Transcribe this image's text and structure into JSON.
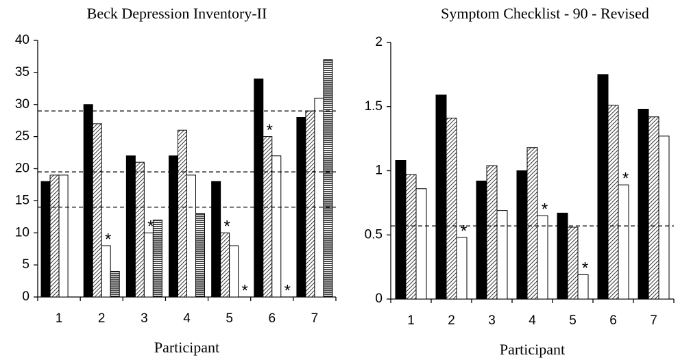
{
  "chart_data": [
    {
      "type": "bar",
      "title": "Beck Depression Inventory-II",
      "x_label": "Participant",
      "categories": [
        "1",
        "2",
        "3",
        "4",
        "5",
        "6",
        "7"
      ],
      "series": [
        {
          "color": "#000000",
          "pattern": "solid",
          "values": [
            18,
            30,
            22,
            22,
            18,
            34,
            28
          ],
          "markers": [
            null,
            null,
            null,
            null,
            null,
            null,
            null
          ]
        },
        {
          "color": "#000000",
          "pattern": "diagonal",
          "values": [
            19,
            27,
            21,
            26,
            10,
            25,
            29
          ],
          "markers": [
            null,
            null,
            null,
            null,
            "*",
            "*",
            null
          ]
        },
        {
          "color": "#000000",
          "pattern": "none",
          "values": [
            19,
            8,
            10,
            19,
            8,
            22,
            31
          ],
          "markers": [
            null,
            "*",
            "*",
            null,
            null,
            null,
            null
          ]
        },
        {
          "color": "#000000",
          "pattern": "horizontal",
          "values": [
            null,
            4,
            12,
            13,
            0,
            0,
            37
          ],
          "markers": [
            null,
            null,
            null,
            null,
            "*",
            "*",
            null
          ]
        }
      ],
      "reference_lines": [
        29,
        19.5,
        14
      ],
      "ylim": [
        0,
        40
      ],
      "yticks": [
        0,
        5,
        10,
        15,
        20,
        25,
        30,
        35,
        40
      ]
    },
    {
      "type": "bar",
      "title": "Symptom Checklist - 90 - Revised",
      "x_label": "Participant",
      "categories": [
        "1",
        "2",
        "3",
        "4",
        "5",
        "6",
        "7"
      ],
      "series": [
        {
          "color": "#000000",
          "pattern": "solid",
          "values": [
            1.08,
            1.59,
            0.92,
            1.0,
            0.67,
            1.75,
            1.48
          ],
          "markers": [
            null,
            null,
            null,
            null,
            null,
            null,
            null
          ]
        },
        {
          "color": "#000000",
          "pattern": "diagonal",
          "values": [
            0.97,
            1.41,
            1.04,
            1.18,
            0.56,
            1.51,
            1.42
          ],
          "markers": [
            null,
            null,
            null,
            null,
            null,
            null,
            null
          ]
        },
        {
          "color": "#000000",
          "pattern": "none",
          "values": [
            0.86,
            0.48,
            0.69,
            0.65,
            0.19,
            0.89,
            1.27
          ],
          "markers": [
            null,
            "*",
            null,
            "*",
            "*",
            "*",
            null
          ]
        }
      ],
      "reference_lines": [
        0.57
      ],
      "ylim": [
        0,
        2
      ],
      "yticks": [
        0,
        0.5,
        1,
        1.5,
        2
      ]
    }
  ]
}
